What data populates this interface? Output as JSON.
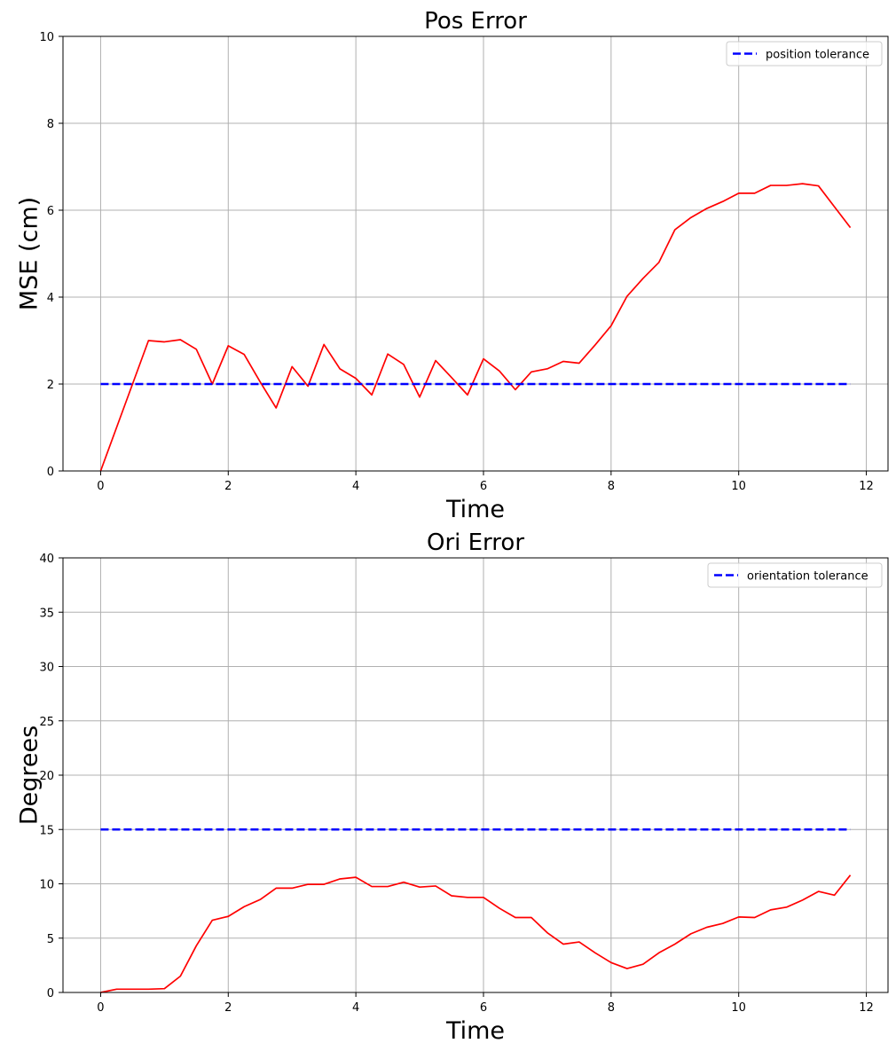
{
  "chart_data": [
    {
      "type": "line",
      "title": "Pos Error",
      "xlabel": "Time",
      "ylabel": "MSE (cm)",
      "xlim": [
        -0.59,
        12.34
      ],
      "ylim": [
        0,
        10
      ],
      "xticks": [
        0,
        2,
        4,
        6,
        8,
        10,
        12
      ],
      "yticks": [
        0,
        2,
        4,
        6,
        8,
        10
      ],
      "grid": true,
      "legend_position": "top-right",
      "series": [
        {
          "style": "solid",
          "color": "#ff0000",
          "x": [
            0,
            0.25,
            0.5,
            0.75,
            1.0,
            1.25,
            1.5,
            1.75,
            2.0,
            2.25,
            2.5,
            2.75,
            3.0,
            3.25,
            3.5,
            3.75,
            4.0,
            4.25,
            4.5,
            4.75,
            5.0,
            5.25,
            5.5,
            5.75,
            6.0,
            6.25,
            6.5,
            6.75,
            7.0,
            7.25,
            7.5,
            7.75,
            8.0,
            8.25,
            8.5,
            8.75,
            9.0,
            9.25,
            9.5,
            9.75,
            10.0,
            10.25,
            10.5,
            10.75,
            11.0,
            11.25,
            11.5,
            11.75
          ],
          "y": [
            0.0,
            1.0,
            2.0,
            3.0,
            2.97,
            3.02,
            2.8,
            2.0,
            2.88,
            2.68,
            2.05,
            1.45,
            2.4,
            1.95,
            2.91,
            2.35,
            2.13,
            1.75,
            2.69,
            2.45,
            1.7,
            2.54,
            2.15,
            1.75,
            2.58,
            2.3,
            1.87,
            2.28,
            2.35,
            2.52,
            2.48,
            2.9,
            3.34,
            4.02,
            4.43,
            4.8,
            5.55,
            5.83,
            6.04,
            6.2,
            6.39,
            6.39,
            6.57,
            6.57,
            6.61,
            6.56,
            6.08,
            5.6
          ]
        },
        {
          "name": "position tolerance",
          "style": "dashed",
          "color": "#0000ff",
          "x": [
            0,
            11.75
          ],
          "y": [
            2,
            2
          ]
        }
      ]
    },
    {
      "type": "line",
      "title": "Ori Error",
      "xlabel": "Time",
      "ylabel": "Degrees",
      "xlim": [
        -0.59,
        12.34
      ],
      "ylim": [
        0,
        40
      ],
      "xticks": [
        0,
        2,
        4,
        6,
        8,
        10,
        12
      ],
      "yticks": [
        0,
        5,
        10,
        15,
        20,
        25,
        30,
        35,
        40
      ],
      "grid": true,
      "legend_position": "top-right",
      "series": [
        {
          "style": "solid",
          "color": "#ff0000",
          "x": [
            0,
            0.25,
            0.5,
            0.75,
            1.0,
            1.25,
            1.5,
            1.75,
            2.0,
            2.25,
            2.5,
            2.75,
            3.0,
            3.25,
            3.5,
            3.75,
            4.0,
            4.25,
            4.5,
            4.75,
            5.0,
            5.25,
            5.5,
            5.75,
            6.0,
            6.25,
            6.5,
            6.75,
            7.0,
            7.25,
            7.5,
            7.75,
            8.0,
            8.25,
            8.5,
            8.75,
            9.0,
            9.25,
            9.5,
            9.75,
            10.0,
            10.25,
            10.5,
            10.75,
            11.0,
            11.25,
            11.5,
            11.75
          ],
          "y": [
            0.0,
            0.3,
            0.3,
            0.3,
            0.35,
            1.5,
            4.3,
            6.65,
            7.0,
            7.9,
            8.55,
            9.6,
            9.6,
            9.95,
            9.95,
            10.45,
            10.6,
            9.75,
            9.75,
            10.15,
            9.7,
            9.8,
            8.9,
            8.75,
            8.75,
            7.75,
            6.9,
            6.9,
            5.5,
            4.45,
            4.65,
            3.65,
            2.75,
            2.2,
            2.6,
            3.65,
            4.45,
            5.4,
            6.0,
            6.35,
            6.95,
            6.9,
            7.6,
            7.85,
            8.5,
            9.3,
            8.95,
            10.8
          ]
        },
        {
          "name": "orientation tolerance",
          "style": "dashed",
          "color": "#0000ff",
          "x": [
            0,
            11.75
          ],
          "y": [
            15,
            15
          ]
        }
      ]
    }
  ]
}
